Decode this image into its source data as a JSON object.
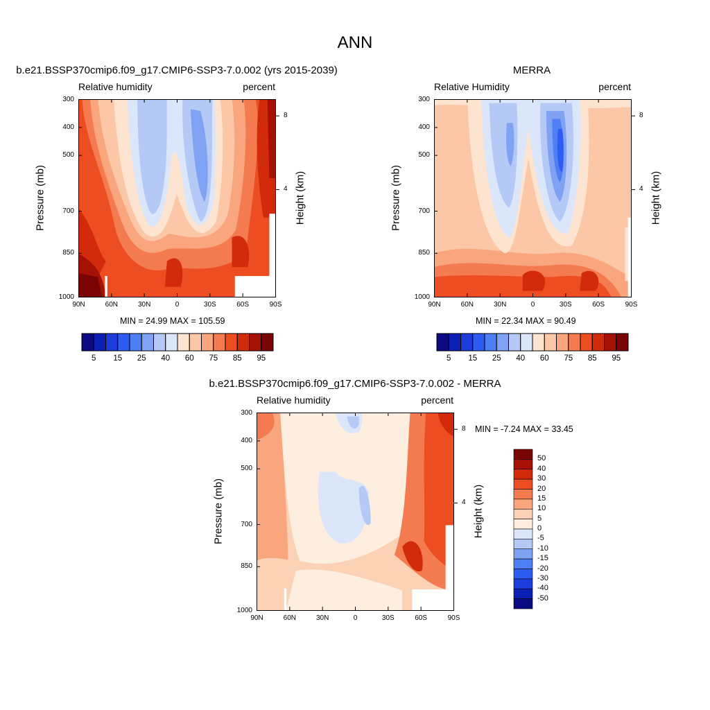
{
  "main_title": "ANN",
  "panels": {
    "model": {
      "title": "b.e21.BSSP370cmip6.f09_g17.CMIP6-SSP3-7.0.002 (yrs 2015-2039)",
      "left_label": "Relative humidity",
      "right_label": "percent",
      "ylabel": "Pressure (mb)",
      "ylabel_right": "Height (km)",
      "stats": "MIN =  24.99  MAX = 105.59"
    },
    "obs": {
      "title": "MERRA",
      "left_label": "Relative Humidity",
      "right_label": "percent",
      "ylabel": "Pressure (mb)",
      "ylabel_right": "Height (km)",
      "stats": "MIN =  22.34  MAX =  90.49"
    },
    "diff": {
      "title": "b.e21.BSSP370cmip6.f09_g17.CMIP6-SSP3-7.0.002 - MERRA",
      "left_label": "Relative humidity",
      "right_label": "percent",
      "ylabel": "Pressure (mb)",
      "ylabel_right": "Height (km)",
      "stats": "MIN =  -7.24  MAX =  33.45"
    }
  },
  "axes": {
    "x_ticks": [
      "90N",
      "60N",
      "30N",
      "0",
      "30S",
      "60S",
      "90S"
    ],
    "y_ticks": [
      "300",
      "400",
      "500",
      "700",
      "850",
      "1000"
    ],
    "height_ticks": [
      "8",
      "4"
    ]
  },
  "colorbars": {
    "main_labels": [
      "5",
      "15",
      "25",
      "40",
      "60",
      "75",
      "85",
      "95"
    ],
    "diff_labels": [
      "50",
      "40",
      "30",
      "20",
      "15",
      "10",
      "5",
      "0",
      "-5",
      "-10",
      "-15",
      "-20",
      "-30",
      "-40",
      "-50"
    ]
  },
  "chart_data": [
    {
      "type": "heatmap",
      "title": "b.e21.BSSP370cmip6.f09_g17.CMIP6-SSP3-7.0.002 (yrs 2015-2039)",
      "variable": "Relative humidity",
      "units": "percent",
      "xlabel": "",
      "ylabel": "Pressure (mb)",
      "xlim": [
        90,
        -90
      ],
      "ylim": [
        1000,
        300
      ],
      "y_scale": "log",
      "levels": [
        5,
        10,
        15,
        20,
        25,
        30,
        40,
        50,
        60,
        70,
        75,
        80,
        85,
        90,
        95
      ],
      "min": 24.99,
      "max": 105.59
    },
    {
      "type": "heatmap",
      "title": "MERRA",
      "variable": "Relative Humidity",
      "units": "percent",
      "xlabel": "",
      "ylabel": "Pressure (mb)",
      "xlim": [
        90,
        -90
      ],
      "ylim": [
        1000,
        300
      ],
      "y_scale": "log",
      "levels": [
        5,
        10,
        15,
        20,
        25,
        30,
        40,
        50,
        60,
        70,
        75,
        80,
        85,
        90,
        95
      ],
      "min": 22.34,
      "max": 90.49
    },
    {
      "type": "heatmap",
      "title": "b.e21.BSSP370cmip6.f09_g17.CMIP6-SSP3-7.0.002 - MERRA",
      "variable": "Relative humidity",
      "units": "percent",
      "xlabel": "",
      "ylabel": "Pressure (mb)",
      "xlim": [
        90,
        -90
      ],
      "ylim": [
        1000,
        300
      ],
      "y_scale": "log",
      "levels": [
        -50,
        -40,
        -30,
        -20,
        -15,
        -10,
        -5,
        0,
        5,
        10,
        15,
        20,
        30,
        40,
        50
      ],
      "min": -7.24,
      "max": 33.45
    }
  ],
  "colors": {
    "main_scale": [
      "#0a0a82",
      "#0a1eb4",
      "#1c3cdc",
      "#2f5cf0",
      "#4f7ff5",
      "#7fa2f3",
      "#b4c9f5",
      "#dbe6fa",
      "#fde4d0",
      "#fcc7a6",
      "#f9a57d",
      "#f47b50",
      "#ec4e22",
      "#d22b0b",
      "#a51205",
      "#7a0404"
    ],
    "diff_scale": [
      "#0a0a82",
      "#0a1eb4",
      "#1c3cdc",
      "#2f5cf0",
      "#4f7ff5",
      "#7fa2f3",
      "#b4c9f5",
      "#dbe6fa",
      "#fdeee0",
      "#fcd2b6",
      "#f9a57d",
      "#f47b50",
      "#ec4e22",
      "#d22b0b",
      "#a51205",
      "#7a0404"
    ]
  }
}
